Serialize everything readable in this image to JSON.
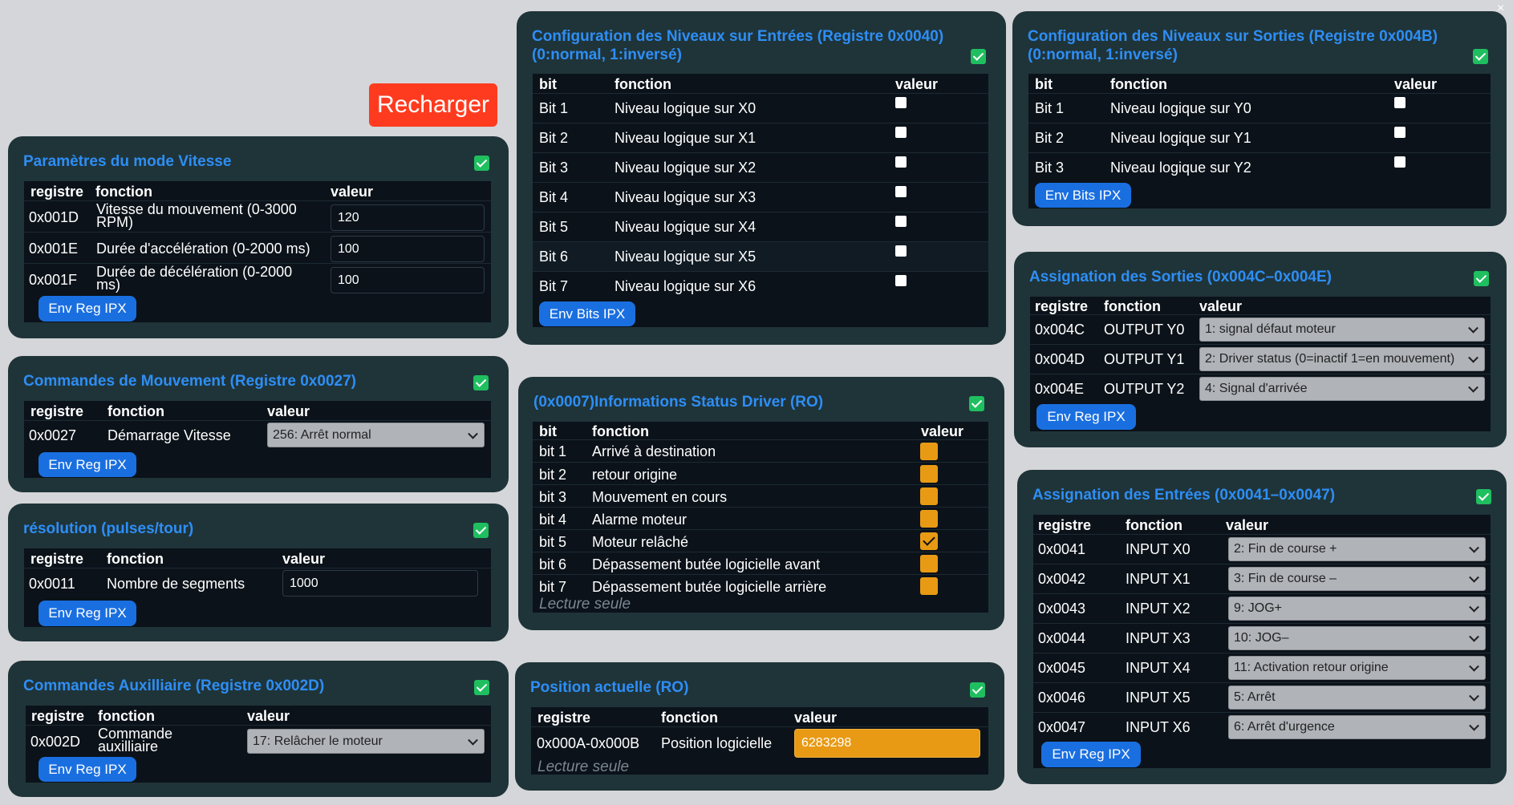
{
  "reload_label": "Recharger",
  "close_glyph": "×",
  "colors": {
    "panel_bg": "#1f3439",
    "accent": "#2e8ef5",
    "button": "#1a6fe0",
    "reload": "#ff3b1f",
    "orange": "#e89a14",
    "check": "#1fbf60"
  },
  "vitesse": {
    "title": "Paramètres du mode Vitesse",
    "headers": [
      "registre",
      "fonction",
      "valeur"
    ],
    "rows": [
      {
        "reg": "0x001D",
        "fn": "Vitesse du mouvement (0-3000 RPM)",
        "val": "120"
      },
      {
        "reg": "0x001E",
        "fn": "Durée d'accélération (0-2000 ms)",
        "val": "100"
      },
      {
        "reg": "0x001F",
        "fn": "Durée de décélération (0-2000 ms)",
        "val": "100"
      }
    ],
    "button": "Env Reg IPX"
  },
  "mouvement": {
    "title": "Commandes de Mouvement (Registre 0x0027)",
    "headers": [
      "registre",
      "fonction",
      "valeur"
    ],
    "rows": [
      {
        "reg": "0x0027",
        "fn": "Démarrage Vitesse",
        "val": "256: Arrêt normal"
      }
    ],
    "button": "Env Reg IPX"
  },
  "resolution": {
    "title": "résolution (pulses/tour)",
    "headers": [
      "registre",
      "fonction",
      "valeur"
    ],
    "rows": [
      {
        "reg": "0x0011",
        "fn": "Nombre de segments",
        "val": "1000"
      }
    ],
    "button": "Env Reg IPX"
  },
  "auxiliaire": {
    "title": "Commandes Auxilliaire (Registre 0x002D)",
    "headers": [
      "registre",
      "fonction",
      "valeur"
    ],
    "rows": [
      {
        "reg": "0x002D",
        "fn": "Commande auxilliaire",
        "val": "17: Relâcher le moteur"
      }
    ],
    "button": "Env Reg IPX"
  },
  "niv_entrees": {
    "title": "Configuration des Niveaux sur Entrées (Registre 0x0040) (0:normal, 1:inversé)",
    "headers": [
      "bit",
      "fonction",
      "valeur"
    ],
    "rows": [
      {
        "bit": "Bit 1",
        "fn": "Niveau logique sur X0"
      },
      {
        "bit": "Bit 2",
        "fn": "Niveau logique sur X1"
      },
      {
        "bit": "Bit 3",
        "fn": "Niveau logique sur X2"
      },
      {
        "bit": "Bit 4",
        "fn": "Niveau logique sur X3"
      },
      {
        "bit": "Bit 5",
        "fn": "Niveau logique sur X4"
      },
      {
        "bit": "Bit 6",
        "fn": "Niveau logique sur X5"
      },
      {
        "bit": "Bit 7",
        "fn": "Niveau logique sur X6"
      }
    ],
    "button": "Env Bits IPX"
  },
  "status": {
    "title": "(0x0007)Informations Status Driver (RO)",
    "headers": [
      "bit",
      "fonction",
      "valeur"
    ],
    "rows": [
      {
        "bit": "bit 1",
        "fn": "Arrivé à destination",
        "checked": false
      },
      {
        "bit": "bit 2",
        "fn": "retour origine",
        "checked": false
      },
      {
        "bit": "bit 3",
        "fn": "Mouvement en cours",
        "checked": false
      },
      {
        "bit": "bit 4",
        "fn": "Alarme moteur",
        "checked": false
      },
      {
        "bit": "bit 5",
        "fn": "Moteur relâché",
        "checked": true
      },
      {
        "bit": "bit 6",
        "fn": "Dépassement butée logicielle avant",
        "checked": false
      },
      {
        "bit": "bit 7",
        "fn": "Dépassement butée logicielle arrière",
        "checked": false
      }
    ],
    "readonly": "Lecture seule"
  },
  "position": {
    "title": "Position actuelle (RO)",
    "headers": [
      "registre",
      "fonction",
      "valeur"
    ],
    "rows": [
      {
        "reg": "0x000A-0x000B",
        "fn": "Position logicielle",
        "val": "6283298"
      }
    ],
    "readonly": "Lecture seule"
  },
  "niv_sorties": {
    "title": "Configuration des Niveaux sur Sorties (Registre 0x004B) (0:normal, 1:inversé)",
    "headers": [
      "bit",
      "fonction",
      "valeur"
    ],
    "rows": [
      {
        "bit": "Bit 1",
        "fn": "Niveau logique sur Y0"
      },
      {
        "bit": "Bit 2",
        "fn": "Niveau logique sur Y1"
      },
      {
        "bit": "Bit 3",
        "fn": "Niveau logique sur Y2"
      }
    ],
    "button": "Env Bits IPX"
  },
  "sorties": {
    "title": "Assignation des Sorties (0x004C–0x004E)",
    "headers": [
      "registre",
      "fonction",
      "valeur"
    ],
    "rows": [
      {
        "reg": "0x004C",
        "fn": "OUTPUT Y0",
        "val": "1: signal défaut moteur"
      },
      {
        "reg": "0x004D",
        "fn": "OUTPUT Y1",
        "val": "2: Driver status (0=inactif 1=en mouvement)"
      },
      {
        "reg": "0x004E",
        "fn": "OUTPUT Y2",
        "val": "4: Signal d'arrivée"
      }
    ],
    "button": "Env Reg IPX"
  },
  "entrees": {
    "title": "Assignation des Entrées (0x0041–0x0047)",
    "headers": [
      "registre",
      "fonction",
      "valeur"
    ],
    "rows": [
      {
        "reg": "0x0041",
        "fn": "INPUT X0",
        "val": "2: Fin de course +"
      },
      {
        "reg": "0x0042",
        "fn": "INPUT X1",
        "val": "3: Fin de course –"
      },
      {
        "reg": "0x0043",
        "fn": "INPUT X2",
        "val": "9: JOG+"
      },
      {
        "reg": "0x0044",
        "fn": "INPUT X3",
        "val": "10: JOG–"
      },
      {
        "reg": "0x0045",
        "fn": "INPUT X4",
        "val": "11: Activation retour origine"
      },
      {
        "reg": "0x0046",
        "fn": "INPUT X5",
        "val": "5: Arrêt"
      },
      {
        "reg": "0x0047",
        "fn": "INPUT X6",
        "val": "6: Arrêt d'urgence"
      }
    ],
    "button": "Env Reg IPX"
  }
}
